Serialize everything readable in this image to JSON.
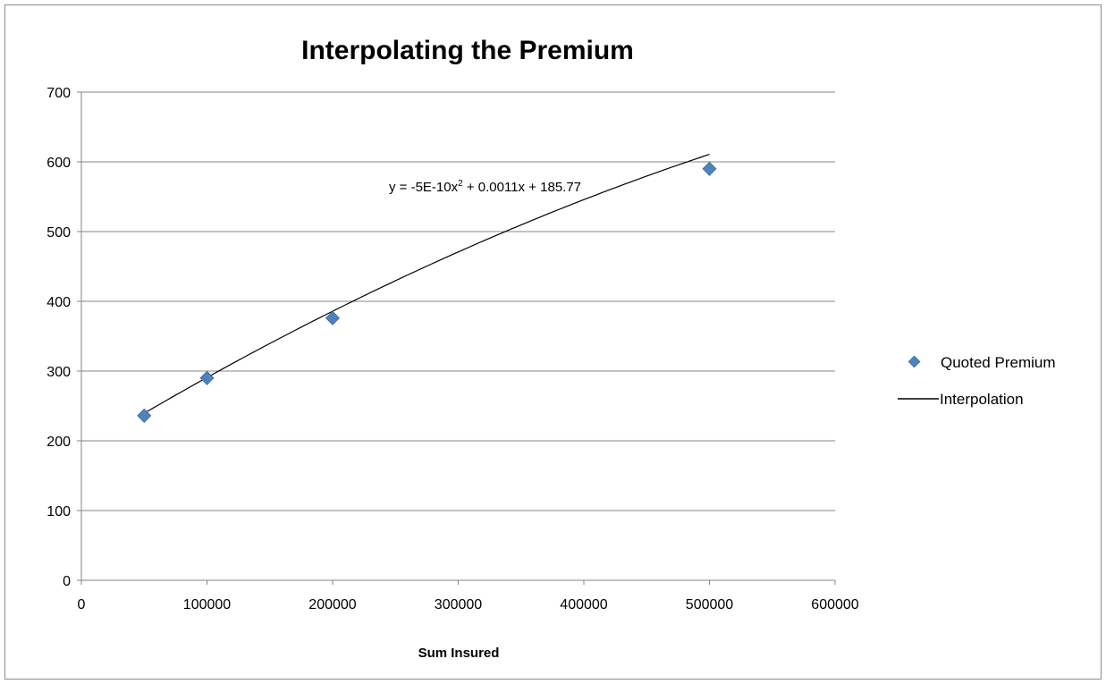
{
  "chart_data": {
    "type": "scatter",
    "title": "Interpolating the Premium",
    "xlabel": "Sum Insured",
    "ylabel": "",
    "xlim": [
      0,
      600000
    ],
    "ylim": [
      0,
      700
    ],
    "x_ticks": [
      "0",
      "100000",
      "200000",
      "300000",
      "400000",
      "500000",
      "600000"
    ],
    "y_ticks": [
      "0",
      "100",
      "200",
      "300",
      "400",
      "500",
      "600",
      "700"
    ],
    "grid": "horizontal",
    "legend_position": "right",
    "series": [
      {
        "name": "Quoted Premium",
        "marker": "diamond",
        "color": "#4f81bd",
        "points": [
          {
            "x": 50000,
            "y": 236
          },
          {
            "x": 100000,
            "y": 290
          },
          {
            "x": 200000,
            "y": 376
          },
          {
            "x": 500000,
            "y": 590
          }
        ]
      }
    ],
    "trendline": {
      "name": "Interpolation",
      "type": "polynomial",
      "order": 2,
      "color": "#000000",
      "x_range": [
        50000,
        500000
      ],
      "coefficients": {
        "a": -5e-10,
        "b": 0.0011,
        "c": 185.77
      },
      "equation_label": {
        "prefix": "y = -5E-10x",
        "superscript": "2",
        "suffix": " + 0.0011x + 185.77"
      }
    }
  }
}
